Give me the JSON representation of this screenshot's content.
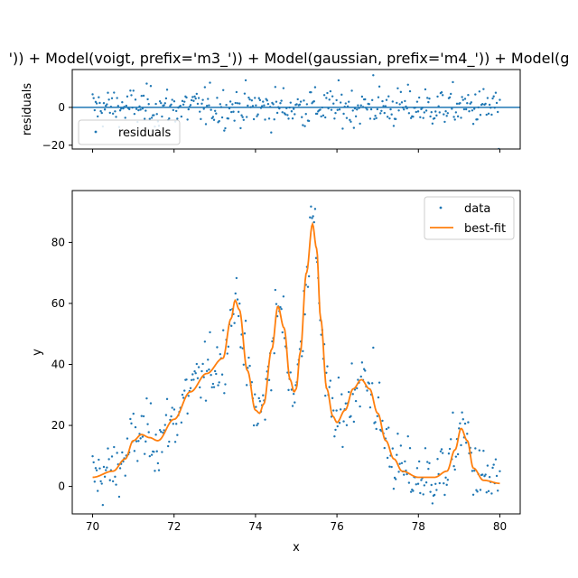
{
  "figure": {
    "title": "')) + Model(voigt, prefix='m3_')) + Model(gaussian, prefix='m4_')) + Model(g"
  },
  "chart_data": [
    {
      "type": "scatter",
      "panel": "residuals",
      "xlabel": "",
      "ylabel": "residuals",
      "xlim": [
        69.5,
        80.5
      ],
      "ylim": [
        -22,
        20
      ],
      "yticks": [
        -20,
        0
      ],
      "xticks": [
        70,
        72,
        74,
        76,
        78,
        80
      ],
      "xtick_labels_visible": false,
      "zero_line": 0,
      "legend": {
        "position": "lower-left",
        "entries": [
          {
            "label": "residuals",
            "marker": "dot",
            "color": "#1f77b4"
          }
        ]
      },
      "series": [
        {
          "name": "residuals",
          "color": "#1f77b4",
          "points": "generated: ~400 residual points scattered around 0, roughly within -16..13, with outliers near (76.9, 17) and (79.9, -22)"
        }
      ]
    },
    {
      "type": "scatter",
      "panel": "main",
      "xlabel": "x",
      "ylabel": "y",
      "xlim": [
        69.5,
        80.5
      ],
      "ylim": [
        -9,
        97
      ],
      "xticks": [
        70,
        72,
        74,
        76,
        78,
        80
      ],
      "yticks": [
        0,
        20,
        40,
        60,
        80
      ],
      "legend": {
        "position": "upper-right",
        "entries": [
          {
            "label": "data",
            "marker": "dot",
            "color": "#1f77b4"
          },
          {
            "label": "best-fit",
            "marker": "line",
            "color": "#ff7f0e"
          }
        ]
      },
      "best_fit": {
        "name": "best-fit",
        "color": "#ff7f0e",
        "x": [
          70.0,
          70.5,
          70.8,
          71.0,
          71.2,
          71.4,
          71.6,
          72.0,
          72.4,
          72.8,
          73.2,
          73.4,
          73.5,
          73.6,
          73.8,
          74.0,
          74.1,
          74.2,
          74.4,
          74.55,
          74.7,
          74.85,
          74.95,
          75.0,
          75.1,
          75.25,
          75.4,
          75.5,
          75.6,
          75.75,
          75.9,
          76.0,
          76.2,
          76.4,
          76.6,
          76.8,
          77.0,
          77.2,
          77.4,
          77.6,
          78.0,
          78.4,
          78.7,
          78.9,
          79.05,
          79.2,
          79.35,
          79.6,
          80.0
        ],
        "y": [
          3,
          5,
          9,
          15,
          17,
          16,
          15,
          22,
          31,
          37,
          42,
          55,
          61,
          58,
          38,
          25,
          24,
          27,
          45,
          59,
          52,
          35,
          31,
          32,
          44,
          70,
          86,
          78,
          55,
          32,
          23,
          21,
          25,
          32,
          35,
          32,
          24,
          15,
          9,
          5,
          3,
          3,
          5,
          12,
          19,
          15,
          6,
          2,
          1
        ]
      },
      "data_series": {
        "name": "data",
        "color": "#1f77b4",
        "points": "generated: ~400 points = best-fit + noise; peaks reach ~76 near x=73.5, ~94 near x=75.35, ~44 near x=76.5"
      }
    }
  ]
}
